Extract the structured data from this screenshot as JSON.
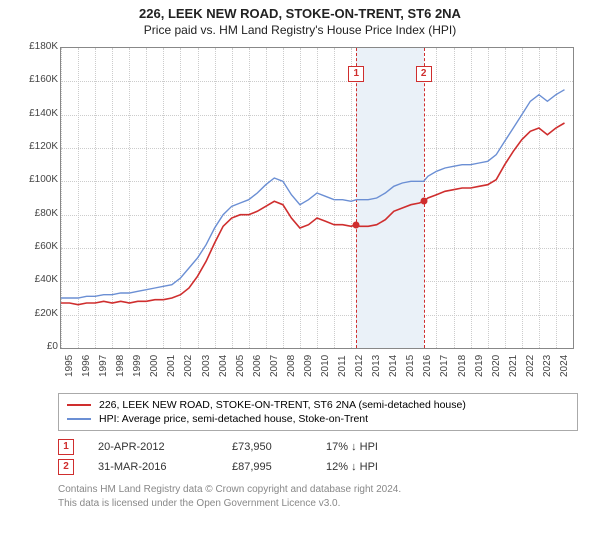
{
  "title": {
    "line1": "226, LEEK NEW ROAD, STOKE-ON-TRENT, ST6 2NA",
    "line2": "Price paid vs. HM Land Registry's House Price Index (HPI)",
    "fontsize_line1": 13,
    "fontsize_line2": 12
  },
  "chart": {
    "type": "line",
    "background_color": "#ffffff",
    "plot_border_color": "#888888",
    "grid_color": "#cccccc",
    "x": {
      "years": [
        "1995",
        "1996",
        "1997",
        "1998",
        "1999",
        "2000",
        "2001",
        "2002",
        "2003",
        "2004",
        "2005",
        "2006",
        "2007",
        "2008",
        "2009",
        "2010",
        "2011",
        "2012",
        "2013",
        "2014",
        "2015",
        "2016",
        "2017",
        "2018",
        "2019",
        "2020",
        "2021",
        "2022",
        "2023",
        "2024"
      ],
      "xlim": [
        1995,
        2025
      ],
      "label_fontsize": 10
    },
    "y": {
      "ticks": [
        0,
        20,
        40,
        60,
        80,
        100,
        120,
        140,
        160,
        180
      ],
      "tick_labels": [
        "£0",
        "£20K",
        "£40K",
        "£60K",
        "£80K",
        "£100K",
        "£120K",
        "£140K",
        "£160K",
        "£180K"
      ],
      "ylim": [
        0,
        180
      ],
      "label_fontsize": 10
    },
    "band": {
      "from_year": 2012.3,
      "to_year": 2016.25,
      "fill": "#eaf1f8",
      "edge_color": "#cf2e2e"
    },
    "markers": [
      {
        "n": "1",
        "year": 2012.3,
        "price_k": 73.95
      },
      {
        "n": "2",
        "year": 2016.25,
        "price_k": 87.995
      }
    ],
    "series": [
      {
        "name": "price_paid",
        "color": "#cf2e2e",
        "line_width": 1.6,
        "points_k": [
          [
            1995.0,
            27
          ],
          [
            1995.5,
            27
          ],
          [
            1996.0,
            26
          ],
          [
            1996.5,
            27
          ],
          [
            1997.0,
            27
          ],
          [
            1997.5,
            28
          ],
          [
            1998.0,
            27
          ],
          [
            1998.5,
            28
          ],
          [
            1999.0,
            27
          ],
          [
            1999.5,
            28
          ],
          [
            2000.0,
            28
          ],
          [
            2000.5,
            29
          ],
          [
            2001.0,
            29
          ],
          [
            2001.5,
            30
          ],
          [
            2002.0,
            32
          ],
          [
            2002.5,
            36
          ],
          [
            2003.0,
            43
          ],
          [
            2003.5,
            52
          ],
          [
            2004.0,
            63
          ],
          [
            2004.5,
            73
          ],
          [
            2005.0,
            78
          ],
          [
            2005.5,
            80
          ],
          [
            2006.0,
            80
          ],
          [
            2006.5,
            82
          ],
          [
            2007.0,
            85
          ],
          [
            2007.5,
            88
          ],
          [
            2008.0,
            86
          ],
          [
            2008.5,
            78
          ],
          [
            2009.0,
            72
          ],
          [
            2009.5,
            74
          ],
          [
            2010.0,
            78
          ],
          [
            2010.5,
            76
          ],
          [
            2011.0,
            74
          ],
          [
            2011.5,
            74
          ],
          [
            2012.0,
            73
          ],
          [
            2012.3,
            74
          ],
          [
            2012.5,
            73
          ],
          [
            2013.0,
            73
          ],
          [
            2013.5,
            74
          ],
          [
            2014.0,
            77
          ],
          [
            2014.5,
            82
          ],
          [
            2015.0,
            84
          ],
          [
            2015.5,
            86
          ],
          [
            2016.0,
            87
          ],
          [
            2016.25,
            88
          ],
          [
            2016.5,
            90
          ],
          [
            2017.0,
            92
          ],
          [
            2017.5,
            94
          ],
          [
            2018.0,
            95
          ],
          [
            2018.5,
            96
          ],
          [
            2019.0,
            96
          ],
          [
            2019.5,
            97
          ],
          [
            2020.0,
            98
          ],
          [
            2020.5,
            101
          ],
          [
            2021.0,
            110
          ],
          [
            2021.5,
            118
          ],
          [
            2022.0,
            125
          ],
          [
            2022.5,
            130
          ],
          [
            2023.0,
            132
          ],
          [
            2023.5,
            128
          ],
          [
            2024.0,
            132
          ],
          [
            2024.5,
            135
          ]
        ]
      },
      {
        "name": "hpi",
        "color": "#6b8fd4",
        "line_width": 1.4,
        "points_k": [
          [
            1995.0,
            30
          ],
          [
            1995.5,
            30
          ],
          [
            1996.0,
            30
          ],
          [
            1996.5,
            31
          ],
          [
            1997.0,
            31
          ],
          [
            1997.5,
            32
          ],
          [
            1998.0,
            32
          ],
          [
            1998.5,
            33
          ],
          [
            1999.0,
            33
          ],
          [
            1999.5,
            34
          ],
          [
            2000.0,
            35
          ],
          [
            2000.5,
            36
          ],
          [
            2001.0,
            37
          ],
          [
            2001.5,
            38
          ],
          [
            2002.0,
            42
          ],
          [
            2002.5,
            48
          ],
          [
            2003.0,
            54
          ],
          [
            2003.5,
            62
          ],
          [
            2004.0,
            72
          ],
          [
            2004.5,
            80
          ],
          [
            2005.0,
            85
          ],
          [
            2005.5,
            87
          ],
          [
            2006.0,
            89
          ],
          [
            2006.5,
            93
          ],
          [
            2007.0,
            98
          ],
          [
            2007.5,
            102
          ],
          [
            2008.0,
            100
          ],
          [
            2008.5,
            92
          ],
          [
            2009.0,
            86
          ],
          [
            2009.5,
            89
          ],
          [
            2010.0,
            93
          ],
          [
            2010.5,
            91
          ],
          [
            2011.0,
            89
          ],
          [
            2011.5,
            89
          ],
          [
            2012.0,
            88
          ],
          [
            2012.3,
            89
          ],
          [
            2012.5,
            89
          ],
          [
            2013.0,
            89
          ],
          [
            2013.5,
            90
          ],
          [
            2014.0,
            93
          ],
          [
            2014.5,
            97
          ],
          [
            2015.0,
            99
          ],
          [
            2015.5,
            100
          ],
          [
            2016.0,
            100
          ],
          [
            2016.25,
            100
          ],
          [
            2016.5,
            103
          ],
          [
            2017.0,
            106
          ],
          [
            2017.5,
            108
          ],
          [
            2018.0,
            109
          ],
          [
            2018.5,
            110
          ],
          [
            2019.0,
            110
          ],
          [
            2019.5,
            111
          ],
          [
            2020.0,
            112
          ],
          [
            2020.5,
            116
          ],
          [
            2021.0,
            124
          ],
          [
            2021.5,
            132
          ],
          [
            2022.0,
            140
          ],
          [
            2022.5,
            148
          ],
          [
            2023.0,
            152
          ],
          [
            2023.5,
            148
          ],
          [
            2024.0,
            152
          ],
          [
            2024.5,
            155
          ]
        ]
      }
    ]
  },
  "legend": {
    "items": [
      {
        "color": "#cf2e2e",
        "label": "226, LEEK NEW ROAD, STOKE-ON-TRENT, ST6 2NA (semi-detached house)"
      },
      {
        "color": "#6b8fd4",
        "label": "HPI: Average price, semi-detached house, Stoke-on-Trent"
      }
    ],
    "fontsize": 10.5
  },
  "events": [
    {
      "n": "1",
      "date": "20-APR-2012",
      "price": "£73,950",
      "pct": "17% ↓ HPI"
    },
    {
      "n": "2",
      "date": "31-MAR-2016",
      "price": "£87,995",
      "pct": "12% ↓ HPI"
    }
  ],
  "license": {
    "line1": "Contains HM Land Registry data © Crown copyright and database right 2024.",
    "line2": "This data is licensed under the Open Government Licence v3.0."
  }
}
